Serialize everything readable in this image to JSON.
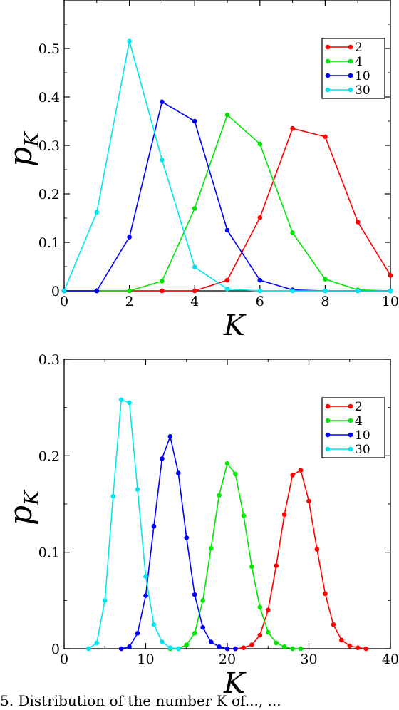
{
  "colors": {
    "2": "#ff0000",
    "4": "#00e600",
    "10": "#0000ff",
    "30": "#00e6f0"
  },
  "caption_fragment": "5. Distribution of the number K of..., ...",
  "chart_data": [
    {
      "type": "line",
      "xlabel": "K",
      "ylabel": "p",
      "ylabel_sub": "K",
      "xlim": [
        0,
        10
      ],
      "ylim": [
        0,
        0.6
      ],
      "xticks": [
        "0",
        "2",
        "4",
        "6",
        "8",
        "10"
      ],
      "yticks": [
        "0",
        "0.1",
        "0.2",
        "0.3",
        "0.4",
        "0.5"
      ],
      "ytick_values": [
        0,
        0.1,
        0.2,
        0.3,
        0.4,
        0.5
      ],
      "xtick_values": [
        0,
        2,
        4,
        6,
        8,
        10
      ],
      "legend_position": "top-right",
      "series": [
        {
          "name": "2",
          "color": "#ff0000",
          "x": [
            0,
            1,
            2,
            3,
            4,
            5,
            6,
            7,
            8,
            9,
            10
          ],
          "y": [
            0,
            0,
            0,
            0,
            0,
            0.022,
            0.151,
            0.335,
            0.318,
            0.142,
            0.032
          ]
        },
        {
          "name": "4",
          "color": "#00e600",
          "x": [
            0,
            1,
            2,
            3,
            4,
            5,
            6,
            7,
            8,
            9,
            10
          ],
          "y": [
            0,
            0,
            0,
            0.02,
            0.17,
            0.363,
            0.303,
            0.12,
            0.024,
            0.002,
            0
          ]
        },
        {
          "name": "10",
          "color": "#0000ff",
          "x": [
            0,
            1,
            2,
            3,
            4,
            5,
            6,
            7,
            8,
            9,
            10
          ],
          "y": [
            0,
            0,
            0.111,
            0.39,
            0.35,
            0.125,
            0.022,
            0.002,
            0,
            0,
            0
          ]
        },
        {
          "name": "30",
          "color": "#00e6f0",
          "x": [
            0,
            1,
            2,
            3,
            4,
            5,
            6,
            7,
            8,
            9,
            10
          ],
          "y": [
            0,
            0.162,
            0.515,
            0.27,
            0.049,
            0.004,
            0,
            0,
            0,
            0,
            0
          ]
        }
      ]
    },
    {
      "type": "line",
      "xlabel": "K",
      "ylabel": "p",
      "ylabel_sub": "K",
      "xlim": [
        0,
        40
      ],
      "ylim": [
        0,
        0.3
      ],
      "xticks": [
        "0",
        "10",
        "20",
        "30",
        "40"
      ],
      "yticks": [
        "0",
        "0.1",
        "0.2",
        "0.3"
      ],
      "ytick_values": [
        0,
        0.1,
        0.2,
        0.3
      ],
      "xtick_values": [
        0,
        10,
        20,
        30,
        40
      ],
      "legend_position": "top-right",
      "series": [
        {
          "name": "2",
          "color": "#ff0000",
          "x": [
            20,
            21,
            22,
            23,
            24,
            25,
            26,
            27,
            28,
            29,
            30,
            31,
            32,
            33,
            34,
            35,
            36,
            37
          ],
          "y": [
            0,
            0,
            0.001,
            0.004,
            0.014,
            0.04,
            0.086,
            0.139,
            0.18,
            0.185,
            0.153,
            0.103,
            0.057,
            0.025,
            0.009,
            0.003,
            0.001,
            0
          ]
        },
        {
          "name": "4",
          "color": "#00e600",
          "x": [
            13,
            14,
            15,
            16,
            17,
            18,
            19,
            20,
            21,
            22,
            23,
            24,
            25,
            26,
            27,
            28,
            29
          ],
          "y": [
            0,
            0,
            0.004,
            0.016,
            0.05,
            0.104,
            0.159,
            0.192,
            0.181,
            0.138,
            0.085,
            0.043,
            0.017,
            0.006,
            0.002,
            0,
            0
          ]
        },
        {
          "name": "10",
          "color": "#0000ff",
          "x": [
            7,
            8,
            9,
            10,
            11,
            12,
            13,
            14,
            15,
            16,
            17,
            18,
            19,
            20,
            21
          ],
          "y": [
            0,
            0.002,
            0.016,
            0.055,
            0.127,
            0.197,
            0.22,
            0.182,
            0.115,
            0.056,
            0.022,
            0.007,
            0.002,
            0,
            0
          ]
        },
        {
          "name": "30",
          "color": "#00e6f0",
          "x": [
            3,
            4,
            5,
            6,
            7,
            8,
            9,
            10,
            11,
            12,
            13,
            14
          ],
          "y": [
            0,
            0.006,
            0.05,
            0.158,
            0.258,
            0.255,
            0.165,
            0.075,
            0.025,
            0.007,
            0.001,
            0
          ]
        }
      ]
    }
  ]
}
